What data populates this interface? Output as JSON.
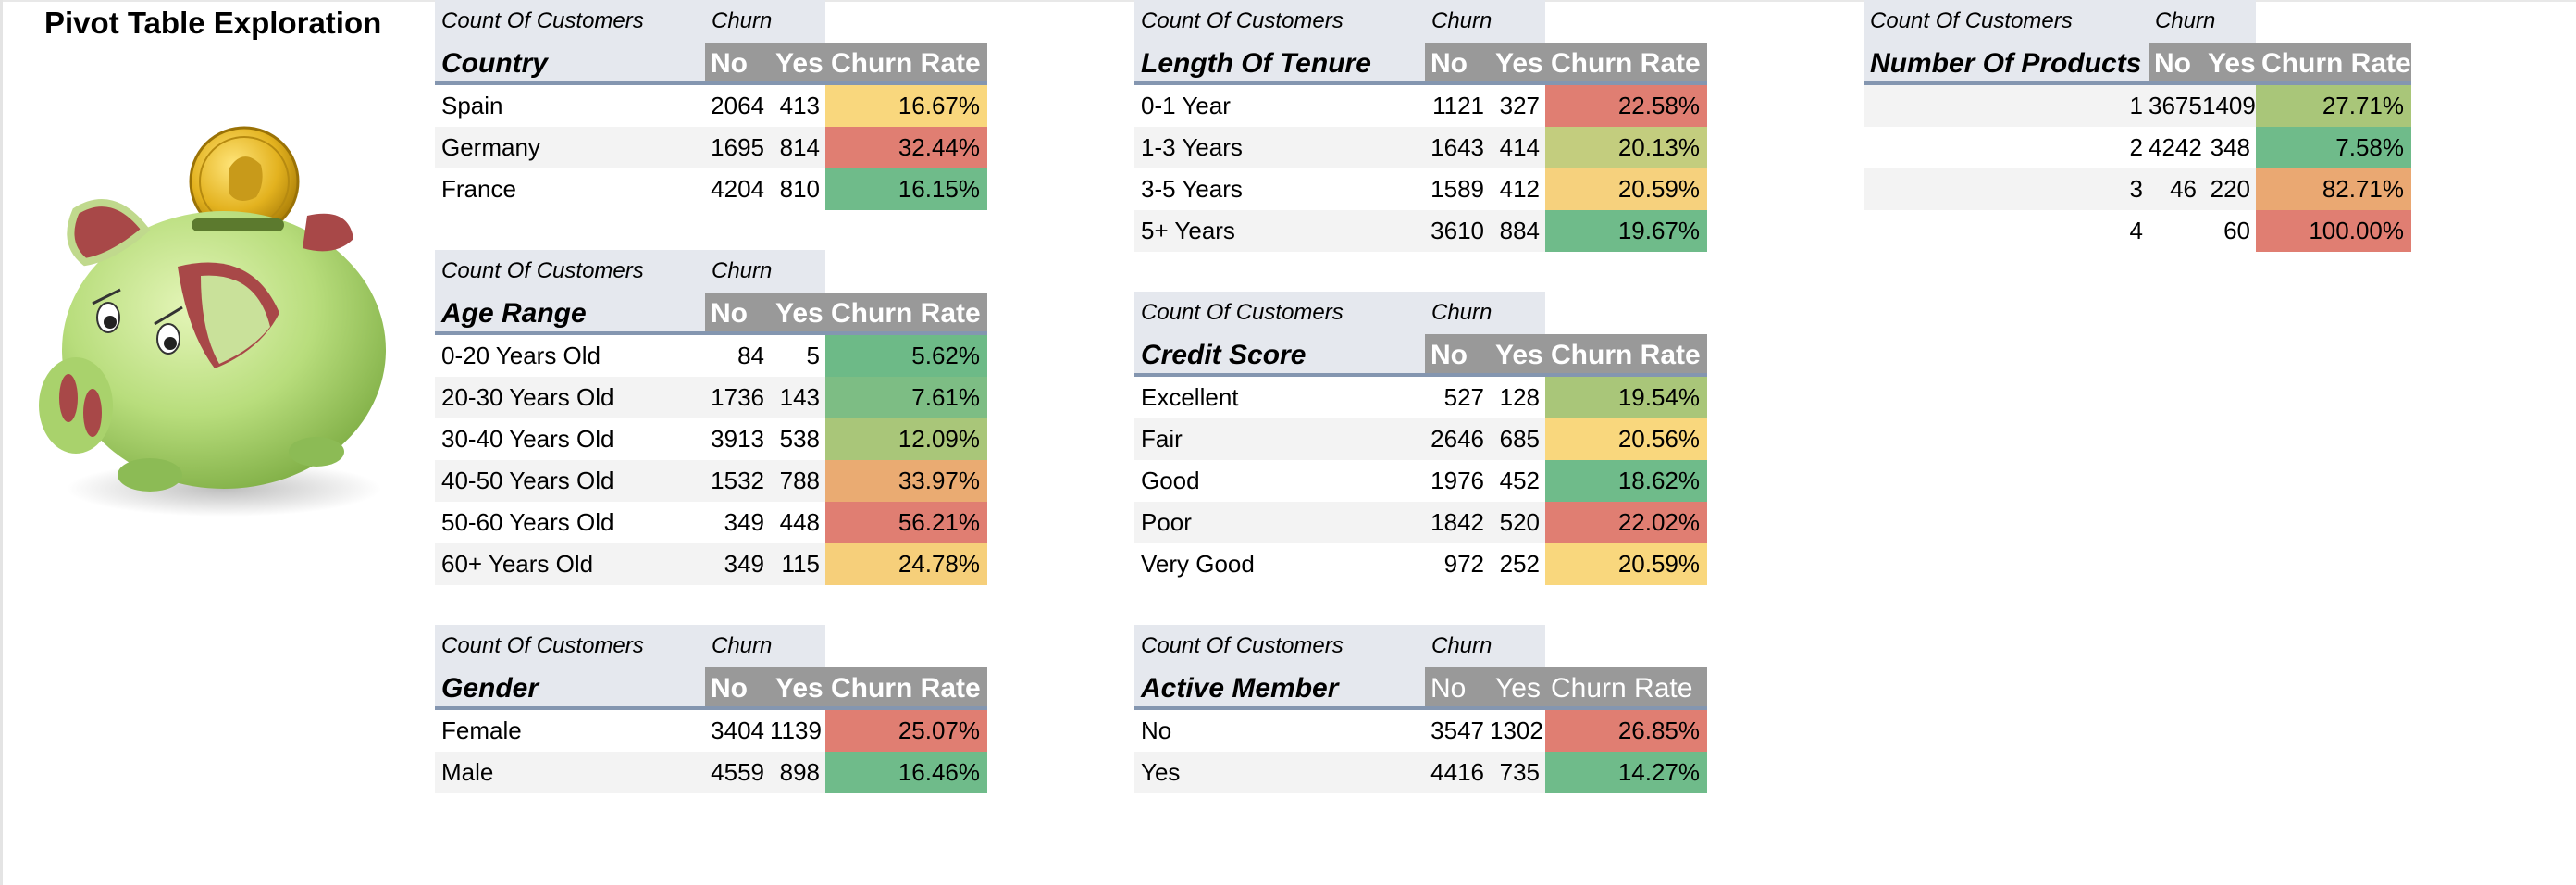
{
  "page_title": "Pivot Table Exploration",
  "illustration": "piggy-bank-with-coin",
  "heatmap_colors": {
    "best": "#6fbb8a",
    "good": "#a9c679",
    "mid": "#f9d57d",
    "warn": "#eaa872",
    "worst": "#e07e72"
  },
  "pivots": [
    {
      "id": "country",
      "caption": "Count Of Customers",
      "col_caption": "Churn",
      "dimension": "Country",
      "columns": [
        "No",
        "Yes",
        "Churn Rate"
      ],
      "rows": [
        {
          "label": "Spain",
          "no": "2064",
          "yes": "413",
          "rate": "16.67%",
          "color": "#f9d77d"
        },
        {
          "label": "Germany",
          "no": "1695",
          "yes": "814",
          "rate": "32.44%",
          "color": "#e07e72"
        },
        {
          "label": "France",
          "no": "4204",
          "yes": "810",
          "rate": "16.15%",
          "color": "#6fbb8a"
        }
      ]
    },
    {
      "id": "age-range",
      "caption": "Count Of Customers",
      "col_caption": "Churn",
      "dimension": "Age Range",
      "columns": [
        "No",
        "Yes",
        "Churn Rate"
      ],
      "rows": [
        {
          "label": "0-20 Years Old",
          "no": "84",
          "yes": "5",
          "rate": "5.62%",
          "color": "#6dba87"
        },
        {
          "label": "20-30 Years Old",
          "no": "1736",
          "yes": "143",
          "rate": "7.61%",
          "color": "#7dbd84"
        },
        {
          "label": "30-40 Years Old",
          "no": "3913",
          "yes": "538",
          "rate": "12.09%",
          "color": "#a9c679"
        },
        {
          "label": "40-50 Years Old",
          "no": "1532",
          "yes": "788",
          "rate": "33.97%",
          "color": "#eaab72"
        },
        {
          "label": "50-60 Years Old",
          "no": "349",
          "yes": "448",
          "rate": "56.21%",
          "color": "#e07e72"
        },
        {
          "label": "60+ Years Old",
          "no": "349",
          "yes": "115",
          "rate": "24.78%",
          "color": "#f6cf7a"
        }
      ]
    },
    {
      "id": "gender",
      "caption": "Count Of Customers",
      "col_caption": "Churn",
      "dimension": "Gender",
      "columns": [
        "No",
        "Yes",
        "Churn Rate"
      ],
      "rows": [
        {
          "label": "Female",
          "no": "3404",
          "yes": "1139",
          "rate": "25.07%",
          "color": "#e07e72"
        },
        {
          "label": "Male",
          "no": "4559",
          "yes": "898",
          "rate": "16.46%",
          "color": "#6fbb8a"
        }
      ]
    },
    {
      "id": "length-of-tenure",
      "caption": "Count Of Customers",
      "col_caption": "Churn",
      "dimension": "Length Of Tenure",
      "columns": [
        "No",
        "Yes",
        "Churn Rate"
      ],
      "rows": [
        {
          "label": "0-1 Year",
          "no": "1121",
          "yes": "327",
          "rate": "22.58%",
          "color": "#e07e72"
        },
        {
          "label": "1-3 Years",
          "no": "1643",
          "yes": "414",
          "rate": "20.13%",
          "color": "#c3cd7e"
        },
        {
          "label": "3-5 Years",
          "no": "1589",
          "yes": "412",
          "rate": "20.59%",
          "color": "#f6d17d"
        },
        {
          "label": "5+ Years",
          "no": "3610",
          "yes": "884",
          "rate": "19.67%",
          "color": "#6fbb8a"
        }
      ]
    },
    {
      "id": "credit-score",
      "caption": "Count Of Customers",
      "col_caption": "Churn",
      "dimension": "Credit Score",
      "columns": [
        "No",
        "Yes",
        "Churn Rate"
      ],
      "rows": [
        {
          "label": "Excellent",
          "no": "527",
          "yes": "128",
          "rate": "19.54%",
          "color": "#a9c679"
        },
        {
          "label": "Fair",
          "no": "2646",
          "yes": "685",
          "rate": "20.56%",
          "color": "#f9d77d"
        },
        {
          "label": "Good",
          "no": "1976",
          "yes": "452",
          "rate": "18.62%",
          "color": "#6fbb8a"
        },
        {
          "label": "Poor",
          "no": "1842",
          "yes": "520",
          "rate": "22.02%",
          "color": "#e07e72"
        },
        {
          "label": "Very Good",
          "no": "972",
          "yes": "252",
          "rate": "20.59%",
          "color": "#f9d77d"
        }
      ]
    },
    {
      "id": "active-member",
      "caption": "Count Of Customers",
      "col_caption": "Churn",
      "dimension": "Active Member",
      "columns": [
        "No",
        "Yes",
        "Churn Rate"
      ],
      "rows": [
        {
          "label": "No",
          "no": "3547",
          "yes": "1302",
          "rate": "26.85%",
          "color": "#e07e72"
        },
        {
          "label": "Yes",
          "no": "4416",
          "yes": "735",
          "rate": "14.27%",
          "color": "#6fbb8a"
        }
      ]
    },
    {
      "id": "number-of-products",
      "caption": "Count Of Customers",
      "col_caption": "Churn",
      "dimension": "Number Of Products",
      "columns": [
        "No",
        "Yes",
        "Churn Rate"
      ],
      "rows": [
        {
          "label": "1",
          "no": "3675",
          "yes": "1409",
          "rate": "27.71%",
          "color": "#a9c679"
        },
        {
          "label": "2",
          "no": "4242",
          "yes": "348",
          "rate": "7.58%",
          "color": "#6fbb8a"
        },
        {
          "label": "3",
          "no": "46",
          "yes": "220",
          "rate": "82.71%",
          "color": "#eaa872"
        },
        {
          "label": "4",
          "no": "",
          "yes": "60",
          "rate": "100.00%",
          "color": "#e07e72"
        }
      ]
    }
  ]
}
